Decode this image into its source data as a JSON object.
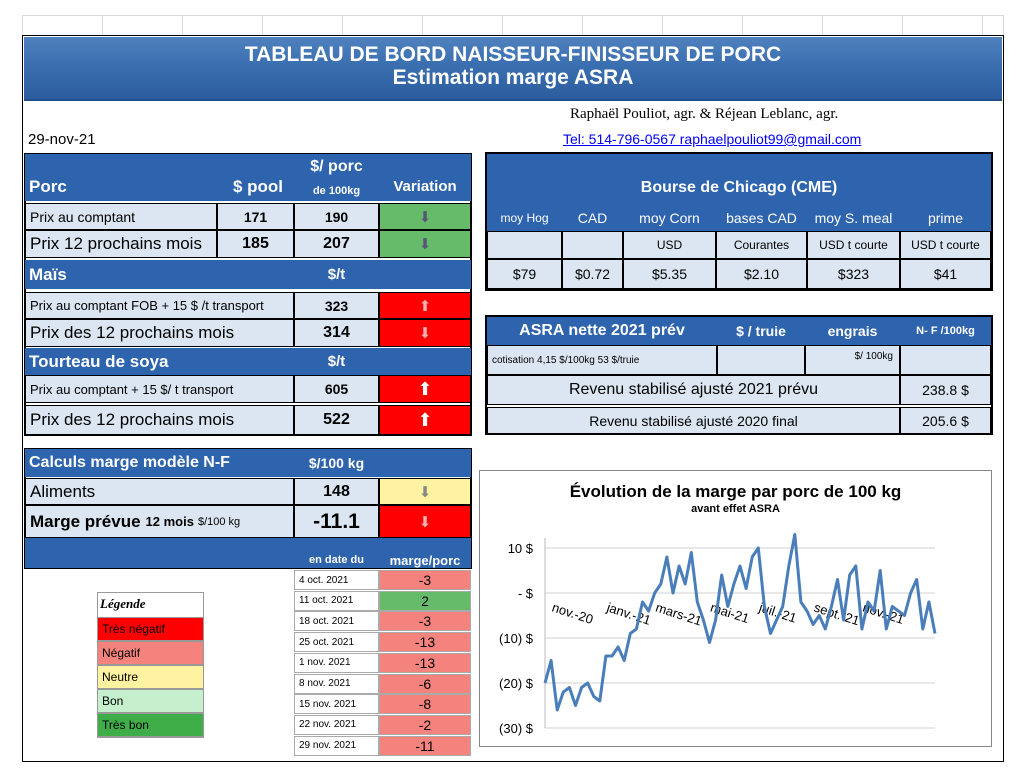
{
  "banner": {
    "title_line1": "TABLEAU  DE BORD NAISSEUR-FINISSEUR  DE PORC",
    "title_line2": "Estimation marge ASRA"
  },
  "authors": "Raphaël Pouliot, agr.    &    Réjean Leblanc, agr.",
  "contact": "Tel:     514-796-0567    raphaelpouliot99@gmail.com",
  "date": "29-nov-21",
  "porc_table": {
    "h_porc": "Porc",
    "h_pool": "$ pool",
    "h_porc100_a": "$/ porc",
    "h_porc100_b": "de 100kg",
    "h_variation": "Variation",
    "r1_label": "Prix au comptant",
    "r1_pool": "171",
    "r1_val": "190",
    "r2_label": "Prix 12 prochains mois",
    "r2_pool": "185",
    "r2_val": "207",
    "mais_label": "Maïs",
    "mais_unit": "$/t",
    "r3_label": "Prix au comptant  FOB + 15 $ /t transport",
    "r3_val": "323",
    "r4_label": "Prix des 12 prochains mois",
    "r4_val": "314",
    "soya_label": "Tourteau de soya",
    "soya_unit": "$/t",
    "r5_label": "Prix au comptant  + 15 $/ t  transport",
    "r5_val": "605",
    "r6_label": "Prix des 12 prochains mois",
    "r6_val": "522"
  },
  "cme": {
    "title": "Bourse de Chicago (CME)",
    "headers": [
      "moy Hog",
      "CAD",
      "moy Corn",
      "bases CAD",
      "moy S. meal",
      "prime"
    ],
    "sub": [
      "",
      "",
      "USD",
      "Courantes",
      "USD t courte",
      "USD t courte"
    ],
    "values": [
      "$79",
      "$0.72",
      "$5.35",
      "$2.10",
      "$323",
      "$41"
    ]
  },
  "asra": {
    "title": "ASRA nette 2021 prév",
    "h_truie": "$ / truie",
    "h_engrais": "engrais",
    "h_nf": "N- F /100kg",
    "cotisation": "cotisation 4,15 $/100kg  53 $/truie",
    "per100": "$/ 100kg",
    "rev2021_label": "Revenu stabilisé ajusté 2021 prévu",
    "rev2021_val": "238.8 $",
    "rev2020_label": "Revenu stabilisé ajusté 2020 final",
    "rev2020_val": "205.6 $"
  },
  "marge": {
    "title": "Calculs marge  modèle N-F",
    "unit": "$/100 kg",
    "aliments_label": "Aliments",
    "aliments_val": "148",
    "prevue_label": "Marge prévue",
    "prevue_sub": "12 mois",
    "prevue_unit": "$/100 kg",
    "prevue_val": "-11.1",
    "h_date": "en date du",
    "h_marge": "marge/porc",
    "history": [
      {
        "date": "4 oct. 2021",
        "val": "-3"
      },
      {
        "date": "11 oct. 2021",
        "val": "2"
      },
      {
        "date": "18 oct. 2021",
        "val": "-3"
      },
      {
        "date": "25 oct. 2021",
        "val": "-13"
      },
      {
        "date": "1 nov. 2021",
        "val": "-13"
      },
      {
        "date": "8 nov. 2021",
        "val": "-6"
      },
      {
        "date": "15 nov. 2021",
        "val": "-8"
      },
      {
        "date": "22 nov. 2021",
        "val": "-2"
      },
      {
        "date": "29 nov. 2021",
        "val": "-11"
      }
    ]
  },
  "legend": {
    "title": "Légende",
    "items": [
      "Très négatif",
      "Négatif",
      "Neutre",
      "Bon",
      "Très bon"
    ]
  },
  "colors": {
    "header_blue": "#2e64ad",
    "positive_green": "#66bb6a",
    "negative_red": "#ff0000",
    "line_blue": "#4a7ebb"
  },
  "chart_data": {
    "type": "line",
    "title": "Évolution de la marge par porc de 100 kg",
    "subtitle": "avant effet ASRA",
    "xlabel": "",
    "ylabel": "",
    "ylim": [
      -30,
      10
    ],
    "y_ticks": [
      "10 $",
      "-  $",
      "(10) $",
      "(20) $",
      "(30) $"
    ],
    "y_tick_values": [
      10,
      0,
      -10,
      -20,
      -30
    ],
    "x_ticks": [
      "nov.-20",
      "janv.-21",
      "mars-21",
      "mai-21",
      "juil.-21",
      "sept.-21",
      "nov.-21"
    ],
    "x_tick_index": [
      1,
      10,
      18,
      27,
      35,
      44,
      52
    ],
    "series": [
      {
        "values": [
          -20,
          -15,
          -26,
          -22,
          -21,
          -25,
          -21,
          -20,
          -23,
          -24,
          -14,
          -14,
          -12,
          -15,
          -9,
          -8,
          -2,
          -4,
          0,
          2,
          8,
          0,
          6,
          2,
          9,
          -2,
          -6,
          -11,
          -6,
          4,
          -3,
          2,
          6,
          1,
          8,
          10,
          -3,
          -9,
          -6,
          -3,
          6,
          13,
          -2,
          -4,
          -7,
          -5,
          -8,
          -3,
          3,
          -6,
          4,
          6,
          -8,
          -2,
          -4,
          5,
          -8,
          -3,
          -4,
          -5,
          0,
          3,
          -8,
          -2,
          -9
        ]
      }
    ]
  }
}
